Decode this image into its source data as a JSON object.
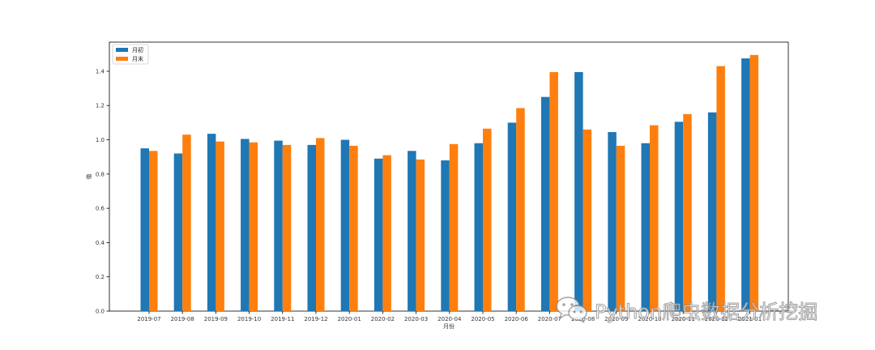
{
  "chart_data": {
    "type": "bar",
    "categories": [
      "2019-07",
      "2019-08",
      "2019-09",
      "2019-10",
      "2019-11",
      "2019-12",
      "2020-01",
      "2020-02",
      "2020-03",
      "2020-04",
      "2020-05",
      "2020-06",
      "2020-07",
      "2020-08",
      "2020-09",
      "2020-10",
      "2020-11",
      "2020-12",
      "2021-01"
    ],
    "series": [
      {
        "name": "月初",
        "color": "#1f77b4",
        "values": [
          0.95,
          0.92,
          1.035,
          1.005,
          0.995,
          0.97,
          1.0,
          0.89,
          0.935,
          0.88,
          0.98,
          1.1,
          1.25,
          1.395,
          1.045,
          0.98,
          1.105,
          1.16,
          1.475
        ]
      },
      {
        "name": "月末",
        "color": "#ff7f0e",
        "values": [
          0.935,
          1.03,
          0.99,
          0.985,
          0.97,
          1.01,
          0.965,
          0.91,
          0.885,
          0.975,
          1.065,
          1.185,
          1.395,
          1.06,
          0.965,
          1.085,
          1.15,
          1.43,
          1.495
        ]
      }
    ],
    "xlabel": "月份",
    "ylabel": "值",
    "ylim": [
      0,
      1.57
    ],
    "yticks": [
      "0.0",
      "0.2",
      "0.4",
      "0.6",
      "0.8",
      "1.0",
      "1.2",
      "1.4"
    ],
    "legend_position": "top-left",
    "grid": false
  },
  "watermark": {
    "text": "Python爬虫数据分析挖掘",
    "icon": "wechat-icon"
  }
}
